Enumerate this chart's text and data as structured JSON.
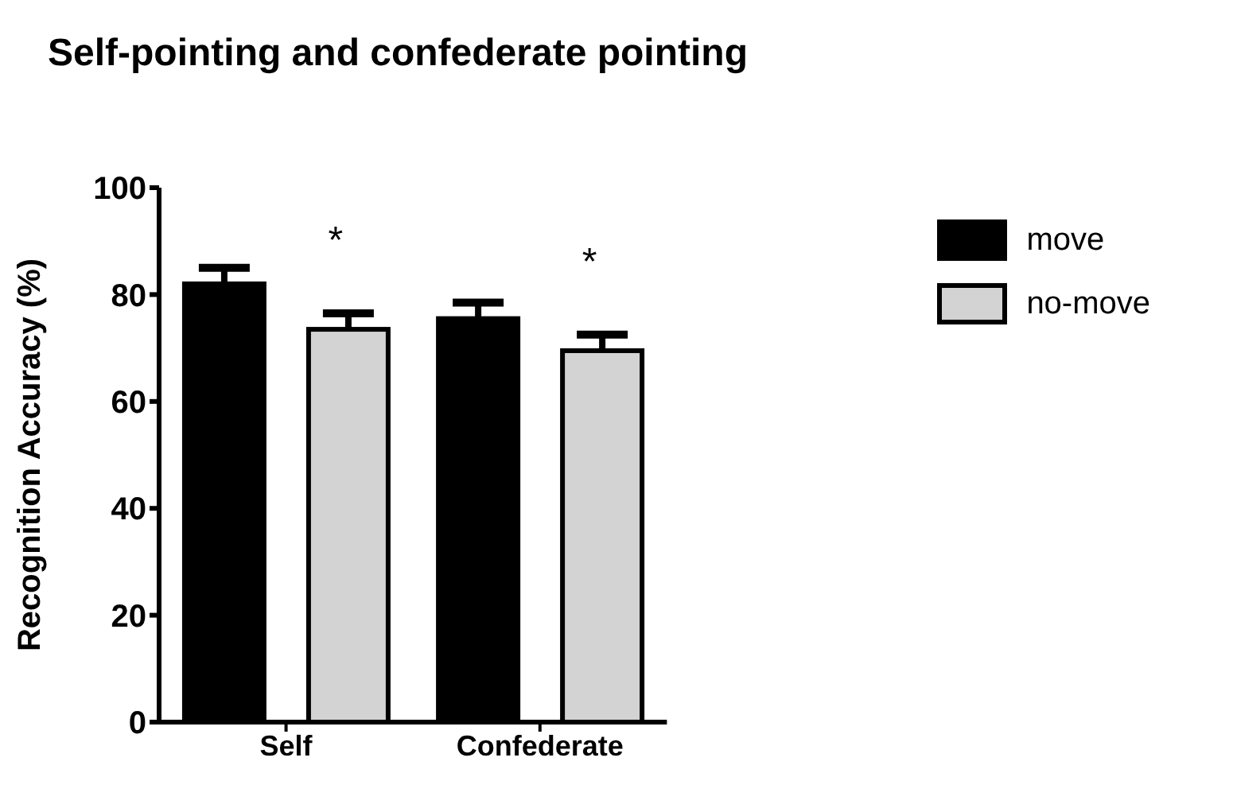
{
  "chart_data": {
    "type": "bar",
    "title": "Self-pointing and confederate pointing",
    "ylabel": "Recognition Accuracy (%)",
    "categories": [
      "Self",
      "Confederate"
    ],
    "series": [
      {
        "name": "move",
        "color": "#000000",
        "values": [
          82,
          75.5
        ],
        "errors": [
          [
            82,
            85
          ],
          [
            75.5,
            78.5
          ]
        ]
      },
      {
        "name": "no-move",
        "color": "#d3d3d3",
        "values": [
          73.5,
          69.5
        ],
        "errors": [
          [
            73.5,
            76.5
          ],
          [
            69.5,
            72.5
          ]
        ]
      }
    ],
    "annotations": [
      "*",
      "*"
    ],
    "ylim": [
      0,
      100
    ],
    "yticks": [
      0,
      20,
      40,
      60,
      80,
      100
    ],
    "grid": false,
    "legend": "top right"
  }
}
